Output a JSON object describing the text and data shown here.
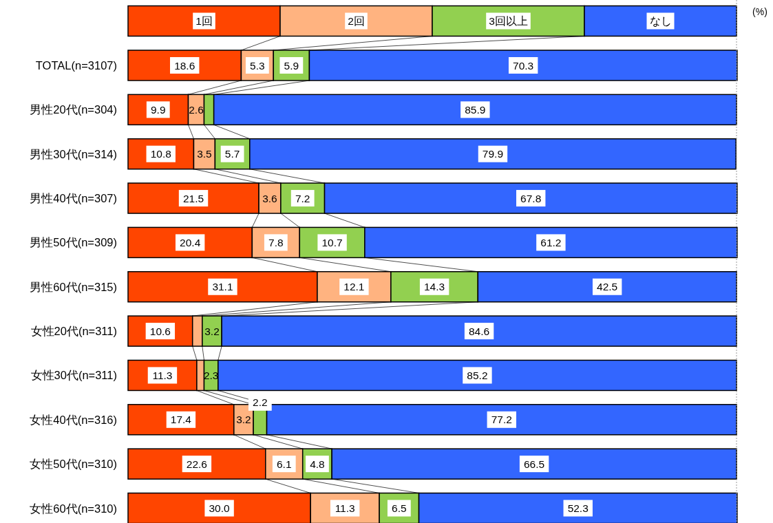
{
  "chart_data": {
    "type": "bar",
    "orientation": "horizontal",
    "stacked": true,
    "legend": "top",
    "tick_labels": "y",
    "xlim": [
      0,
      100
    ],
    "annotations": [
      "(%)"
    ],
    "categories": [
      "TOTAL(n=3107)",
      "男性20代(n=304)",
      "男性30代(n=314)",
      "男性40代(n=307)",
      "男性50代(n=309)",
      "男性60代(n=315)",
      "女性20代(n=311)",
      "女性30代(n=311)",
      "女性40代(n=316)",
      "女性50代(n=310)",
      "女性60代(n=310)"
    ],
    "series": [
      {
        "name": "1回",
        "color": "#ff4500",
        "values": [
          18.6,
          9.9,
          10.8,
          21.5,
          20.4,
          31.1,
          10.6,
          11.3,
          17.4,
          22.6,
          30.0
        ],
        "value_labels": [
          "18.6",
          "9.9",
          "10.8",
          "21.5",
          "20.4",
          "31.1",
          "10.6",
          "11.3",
          "17.4",
          "22.6",
          "30.0"
        ]
      },
      {
        "name": "2回",
        "color": "#ffb380",
        "values": [
          5.3,
          2.6,
          3.5,
          3.6,
          7.8,
          12.1,
          1.6,
          1.2,
          3.2,
          6.1,
          11.3
        ],
        "value_labels": [
          "5.3",
          "2.6",
          "3.5",
          "3.6",
          "7.8",
          "12.1",
          null,
          null,
          "3.2",
          "6.1",
          "11.3"
        ]
      },
      {
        "name": "3回以上",
        "color": "#92d050",
        "values": [
          5.9,
          1.6,
          5.7,
          7.2,
          10.7,
          14.3,
          3.2,
          2.3,
          2.2,
          4.8,
          6.5
        ],
        "value_labels": [
          "5.9",
          null,
          "5.7",
          "7.2",
          "10.7",
          "14.3",
          "3.2",
          "2.3",
          "2.2",
          "4.8",
          "6.5"
        ]
      },
      {
        "name": "なし",
        "color": "#3366ff",
        "values": [
          70.3,
          85.9,
          79.9,
          67.8,
          61.2,
          42.5,
          84.6,
          85.2,
          77.2,
          66.5,
          52.3
        ],
        "value_labels": [
          "70.3",
          "85.9",
          "79.9",
          "67.8",
          "61.2",
          "42.5",
          "84.6",
          "85.2",
          "77.2",
          "66.5",
          "52.3"
        ]
      }
    ]
  }
}
